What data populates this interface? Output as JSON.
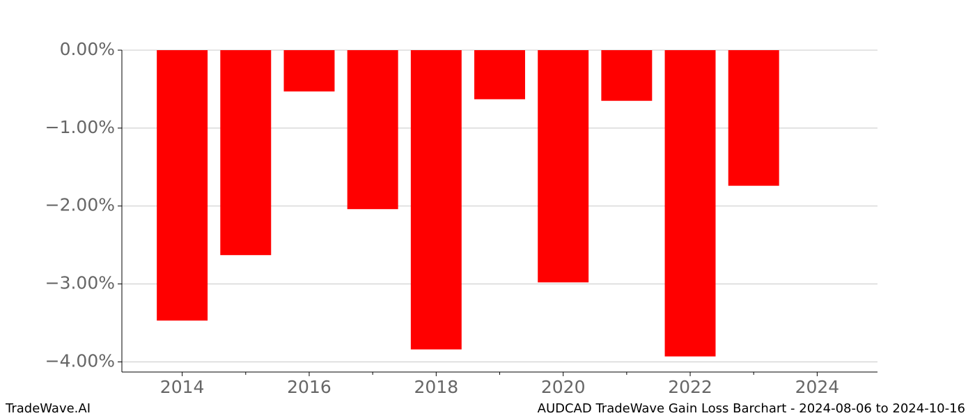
{
  "chart_data": {
    "type": "bar",
    "title": "AUDCAD TradeWave Gain Loss Barchart - 2024-08-06 to 2024-10-16",
    "brand": "TradeWave.AI",
    "x": [
      2014,
      2015,
      2016,
      2017,
      2018,
      2019,
      2020,
      2021,
      2022,
      2023
    ],
    "values": [
      -3.47,
      -2.63,
      -0.53,
      -2.04,
      -3.84,
      -0.63,
      -2.98,
      -0.65,
      -3.93,
      -1.74
    ],
    "color": "#ff0000",
    "xlim": [
      2013.05,
      2024.95
    ],
    "xticks": [
      2014,
      2016,
      2018,
      2020,
      2022,
      2024
    ],
    "xminorticks": [
      2015,
      2017,
      2019,
      2021,
      2023
    ],
    "ylim": [
      -4.13,
      0
    ],
    "yticks": [
      {
        "value": 0,
        "label": "0.00%"
      },
      {
        "value": -1,
        "label": "−1.00%"
      },
      {
        "value": -2,
        "label": "−2.00%"
      },
      {
        "value": -3,
        "label": "−3.00%"
      },
      {
        "value": -4,
        "label": "−4.00%"
      }
    ],
    "grid": true
  }
}
